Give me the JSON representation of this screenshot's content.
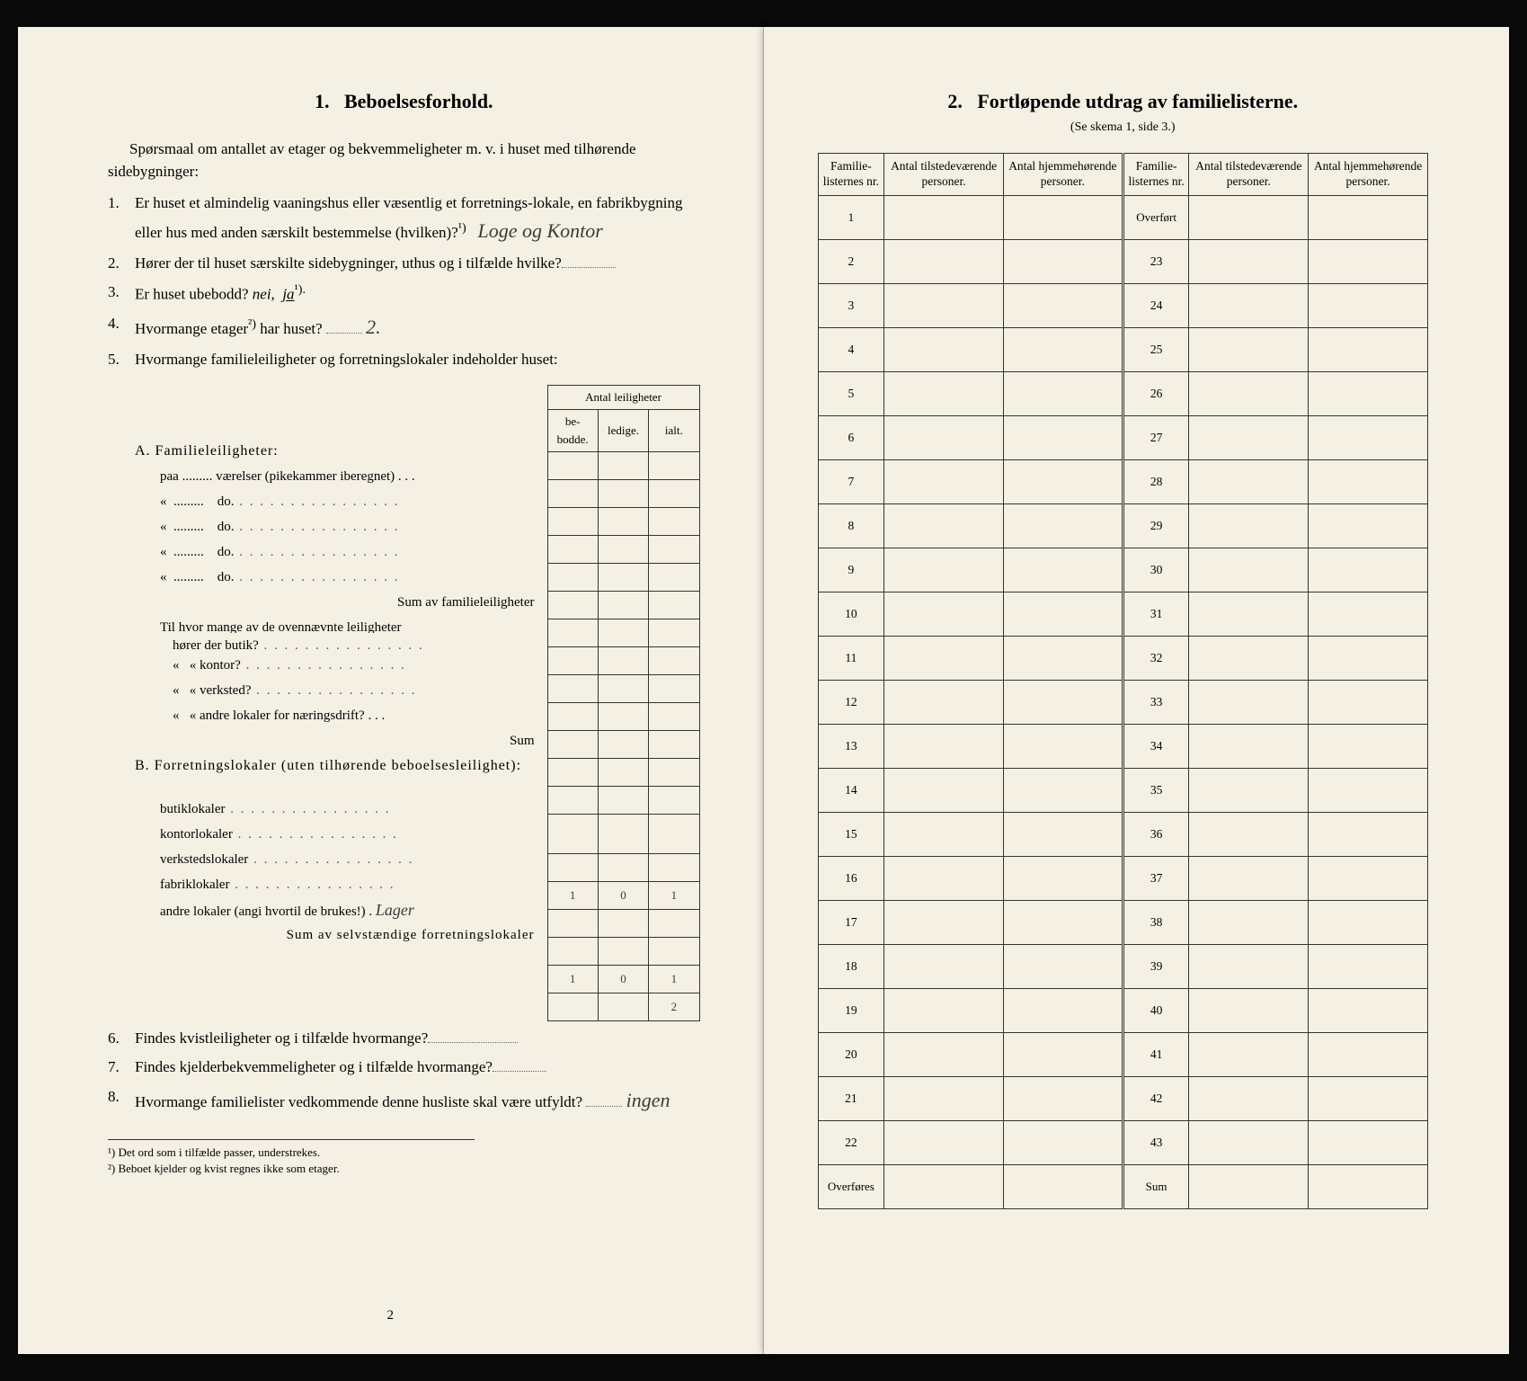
{
  "left": {
    "section_no": "1.",
    "section_title": "Beboelsesforhold.",
    "intro": "Spørsmaal om antallet av etager og bekvemmeligheter m. v. i huset med tilhørende sidebygninger:",
    "q1_a": "Er huset et almindelig vaaningshus eller væsentlig et forretnings-lokale, en fabrikbygning eller hus med anden særskilt bestemmelse (hvilken)?",
    "q1_sup": "¹)",
    "q1_hand": "Loge og Kontor",
    "q2": "Hører der til huset særskilte sidebygninger, uthus og i tilfælde hvilke?",
    "q3_a": "Er huset ubebodd?  ",
    "q3_nei": "nei,",
    "q3_ja": "ja",
    "q3_sup": "¹).",
    "q4_a": "Hvormange etager",
    "q4_sup": "²)",
    "q4_b": " har huset?",
    "q4_hand": "2.",
    "q5": "Hvormange familieleiligheter og forretningslokaler indeholder huset:",
    "leil_header_top": "Antal leiligheter",
    "leil_h1": "be-\nbodde.",
    "leil_h2": "ledige.",
    "leil_h3": "ialt.",
    "A_head": "A. Familieleiligheter:",
    "A_row1": "paa ......... værelser (pikekammer iberegnet) . . .",
    "A_do": "do.",
    "A_sum": "Sum av familieleiligheter",
    "til_text": "Til hvor mange av de ovennævnte leiligheter",
    "til_r1": "hører der butik?",
    "til_r2": "« kontor?",
    "til_r3": "« verksted?",
    "til_r4": "« andre lokaler for næringsdrift?",
    "til_sum": "Sum",
    "B_head": "B. Forretningslokaler (uten tilhørende beboelsesleilighet):",
    "B_r1": "butiklokaler",
    "B_r2": "kontorlokaler",
    "B_r3": "verkstedslokaler",
    "B_r4": "fabriklokaler",
    "B_r5_a": "andre lokaler (angi hvortil de brukes!)",
    "B_r5_hand": "Lager",
    "B_sum": "Sum av selvstændige forretningslokaler",
    "B_vals": {
      "kontor": {
        "bebodde": "1",
        "ledige": "0",
        "ialt": "1"
      },
      "andre": {
        "bebodde": "1",
        "ledige": "0",
        "ialt": "1"
      },
      "sum": {
        "ialt": "2"
      }
    },
    "q6": "Findes kvistleiligheter og i tilfælde hvormange?",
    "q7": "Findes kjelderbekvemmeligheter og i tilfælde hvormange?",
    "q8_a": "Hvormange familielister vedkommende denne husliste skal være utfyldt?",
    "q8_hand": "ingen",
    "fn1": "¹)  Det ord som i tilfælde passer, understrekes.",
    "fn2": "²)  Beboet kjelder og kvist regnes ikke som etager.",
    "pagenum": "2"
  },
  "right": {
    "section_no": "2.",
    "section_title": "Fortløpende utdrag av familielisterne.",
    "subtitle": "(Se skema 1, side 3.)",
    "col_nr": "Familie-listernes nr.",
    "col_tilstede": "Antal tilstedeværende personer.",
    "col_hjemme": "Antal hjemmehørende personer.",
    "overfort": "Overført",
    "overfores": "Overføres",
    "sum": "Sum",
    "rows_left": [
      "1",
      "2",
      "3",
      "4",
      "5",
      "6",
      "7",
      "8",
      "9",
      "10",
      "11",
      "12",
      "13",
      "14",
      "15",
      "16",
      "17",
      "18",
      "19",
      "20",
      "21",
      "22"
    ],
    "rows_right": [
      "23",
      "24",
      "25",
      "26",
      "27",
      "28",
      "29",
      "30",
      "31",
      "32",
      "33",
      "34",
      "35",
      "36",
      "37",
      "38",
      "39",
      "40",
      "41",
      "42",
      "43"
    ]
  }
}
